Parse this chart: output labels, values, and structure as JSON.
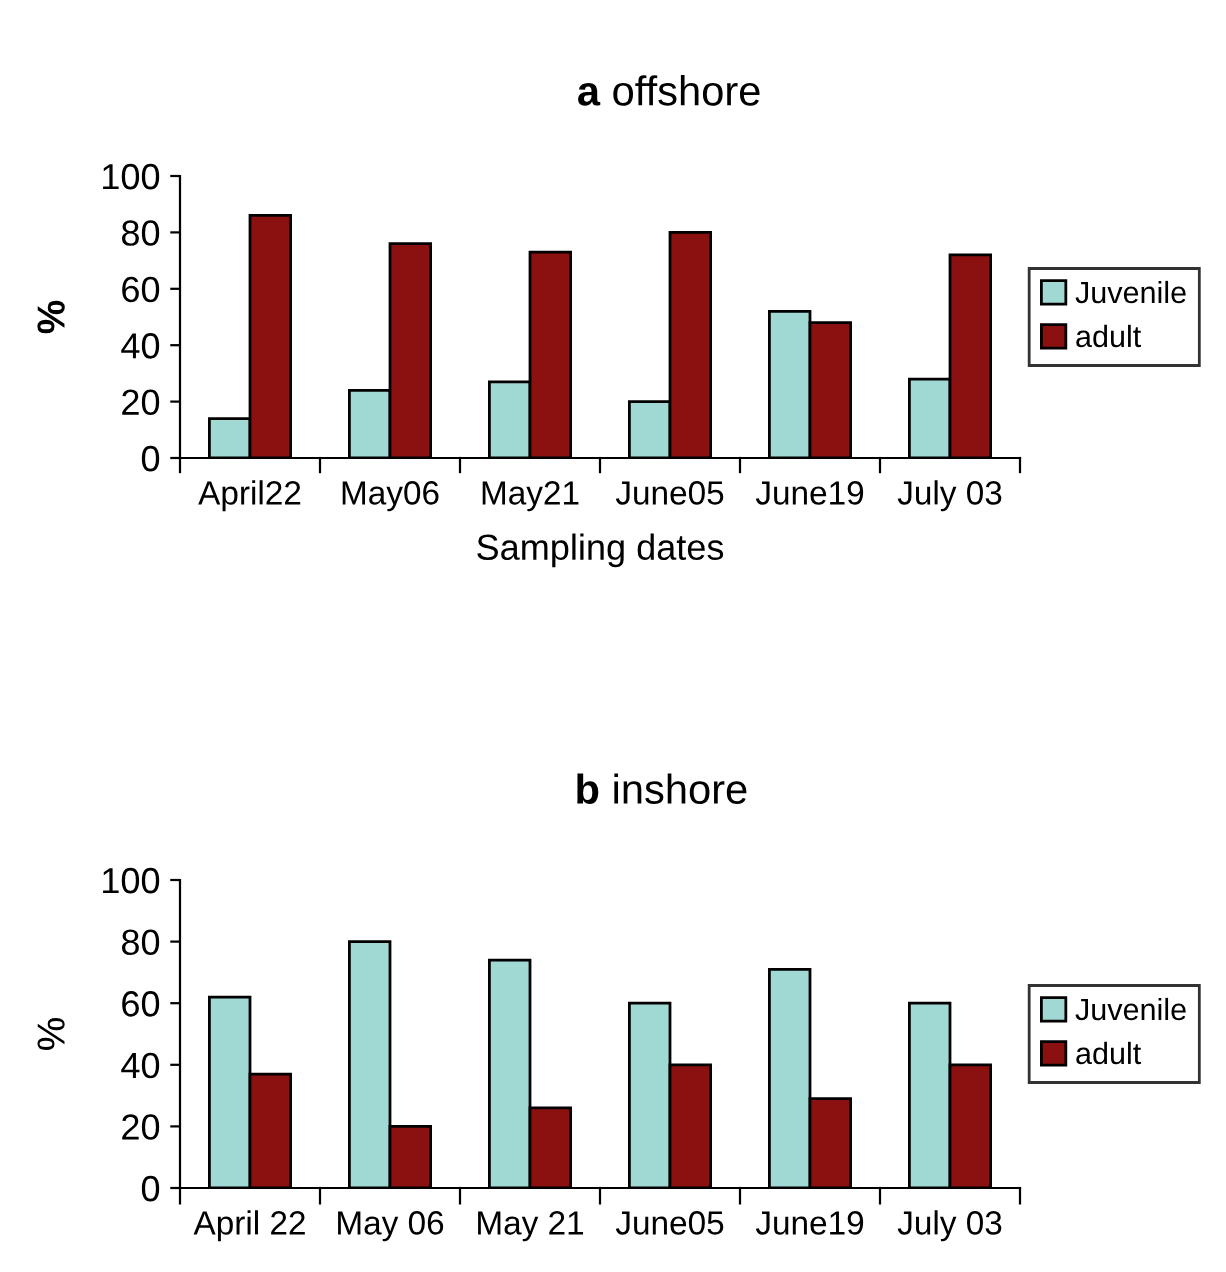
{
  "chart_data": [
    {
      "type": "bar",
      "title": "a offshore",
      "xlabel": "Sampling dates",
      "ylabel": "%",
      "categories": [
        "April22",
        "May06",
        "May21",
        "June05",
        "June19",
        "July 03"
      ],
      "series": [
        {
          "name": "Juvenile",
          "color": "#a0d8d4",
          "values": [
            14,
            24,
            27,
            20,
            52,
            28
          ]
        },
        {
          "name": "adult",
          "color": "#8b1010",
          "values": [
            86,
            76,
            73,
            80,
            48,
            72
          ]
        }
      ],
      "ylim": [
        0,
        100
      ],
      "yticks": [
        0,
        20,
        40,
        60,
        80,
        100
      ],
      "grid": false,
      "legend": "right"
    },
    {
      "type": "bar",
      "title": "b inshore",
      "ylabel": "%",
      "categories": [
        "April 22",
        "May 06",
        "May 21",
        "June05",
        "June19",
        "July 03"
      ],
      "series": [
        {
          "name": "Juvenile",
          "color": "#a0d8d4",
          "values": [
            62,
            80,
            74,
            60,
            71,
            60
          ]
        },
        {
          "name": "adult",
          "color": "#8b1010",
          "values": [
            37,
            20,
            26,
            40,
            29,
            40
          ]
        }
      ],
      "ylim": [
        0,
        100
      ],
      "yticks": [
        0,
        20,
        40,
        60,
        80,
        100
      ],
      "grid": false,
      "legend": "right"
    }
  ]
}
